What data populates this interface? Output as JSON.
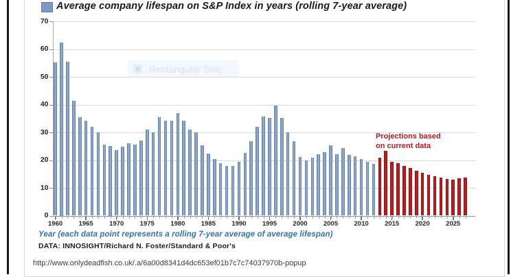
{
  "chart": {
    "title": "Average company lifespan on S&P Index in years (rolling 7-year average)",
    "legend_swatch_color": "#7d99c4",
    "projection_note": {
      "line1": "Projections based",
      "line2": "on current data",
      "color": "#bb1a1a"
    },
    "watermark_label": "Rectangular Snip",
    "x_axis_caption": "Year (each data point represents a rolling 7-year average of average lifespan)",
    "source_note": "DATA: INNOSIGHT/Richard N. Foster/Standard & Poor's",
    "url_caption": "http://www.onlydeadfish.co.uk/.a/6a00d8341d4dc653ef01b7c7c74037970b-popup"
  },
  "chart_data": {
    "type": "bar",
    "title": "Average company lifespan on S&P Index in years (rolling 7-year average)",
    "xlabel": "Year (each data point represents a rolling 7-year average of average lifespan)",
    "ylabel": "",
    "ylim": [
      0,
      70
    ],
    "yticks": [
      0,
      10,
      20,
      30,
      40,
      50,
      60,
      70
    ],
    "xticks": [
      1960,
      1965,
      1970,
      1975,
      1980,
      1985,
      1990,
      1995,
      2000,
      2005,
      2010,
      2015,
      2020,
      2025
    ],
    "grid": true,
    "start_year": 1960,
    "end_year": 2027,
    "series": [
      {
        "name": "Average company lifespan (historical)",
        "start_year": 1960,
        "color_center": "#97afd3",
        "color_edge": "#54749f",
        "values": [
          55.3,
          62.5,
          55.6,
          41.5,
          35.5,
          34.2,
          32,
          30,
          25.5,
          25,
          23.5,
          24.8,
          26,
          25.5,
          27,
          31,
          30,
          35.5,
          34.3,
          34.3,
          37,
          34.2,
          31,
          30,
          25.3,
          22.4,
          20.5,
          18.8,
          18,
          18,
          19.3,
          22.5,
          26.8,
          32,
          35.7,
          35.3,
          39.8,
          35.3,
          30,
          26.8,
          21.2,
          19.9,
          20.9,
          22.2,
          22.9,
          25.3,
          22.2,
          24.3,
          22,
          21.4,
          20.3,
          19.5,
          18.6
        ]
      },
      {
        "name": "Projections based on current data",
        "start_year": 2013,
        "color_center": "#d01c1c",
        "color_edge": "#820d0d",
        "values": [
          21,
          23.3,
          19.4,
          18.8,
          18,
          17.2,
          16.2,
          15.4,
          14.7,
          14.1,
          13.6,
          13.2,
          12.9,
          13.5,
          13.8
        ]
      }
    ]
  }
}
